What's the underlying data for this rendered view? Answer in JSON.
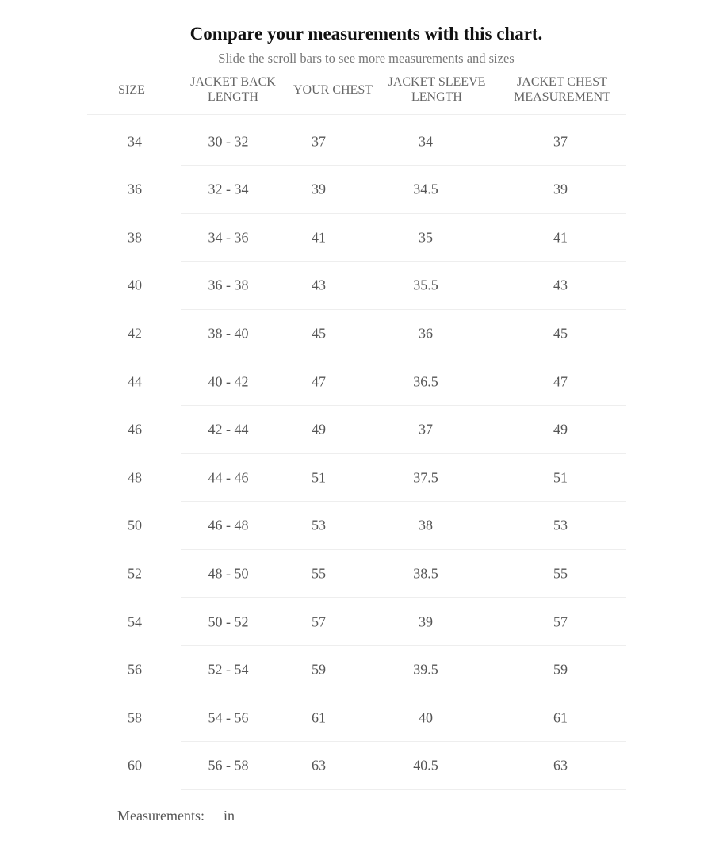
{
  "title": "Compare your measurements with this chart.",
  "subtitle": "Slide the scroll bars to see more measurements and sizes",
  "table": {
    "headers": [
      [
        "SIZE"
      ],
      [
        "JACKET BACK",
        "LENGTH"
      ],
      [
        "YOUR CHEST"
      ],
      [
        "JACKET SLEEVE",
        "LENGTH"
      ],
      [
        "JACKET CHEST",
        "MEASUREMENT"
      ]
    ],
    "rows": [
      [
        "34",
        "30 - 32",
        "37",
        "34",
        "37"
      ],
      [
        "36",
        "32 - 34",
        "39",
        "34.5",
        "39"
      ],
      [
        "38",
        "34 - 36",
        "41",
        "35",
        "41"
      ],
      [
        "40",
        "36 - 38",
        "43",
        "35.5",
        "43"
      ],
      [
        "42",
        "38 - 40",
        "45",
        "36",
        "45"
      ],
      [
        "44",
        "40 - 42",
        "47",
        "36.5",
        "47"
      ],
      [
        "46",
        "42 - 44",
        "49",
        "37",
        "49"
      ],
      [
        "48",
        "44 - 46",
        "51",
        "37.5",
        "51"
      ],
      [
        "50",
        "46 - 48",
        "53",
        "38",
        "53"
      ],
      [
        "52",
        "48 - 50",
        "55",
        "38.5",
        "55"
      ],
      [
        "54",
        "50 - 52",
        "57",
        "39",
        "57"
      ],
      [
        "56",
        "52 - 54",
        "59",
        "39.5",
        "59"
      ],
      [
        "58",
        "54 - 56",
        "61",
        "40",
        "61"
      ],
      [
        "60",
        "56 - 58",
        "63",
        "40.5",
        "63"
      ]
    ]
  },
  "footer": {
    "label": "Measurements:",
    "unit": "in"
  }
}
